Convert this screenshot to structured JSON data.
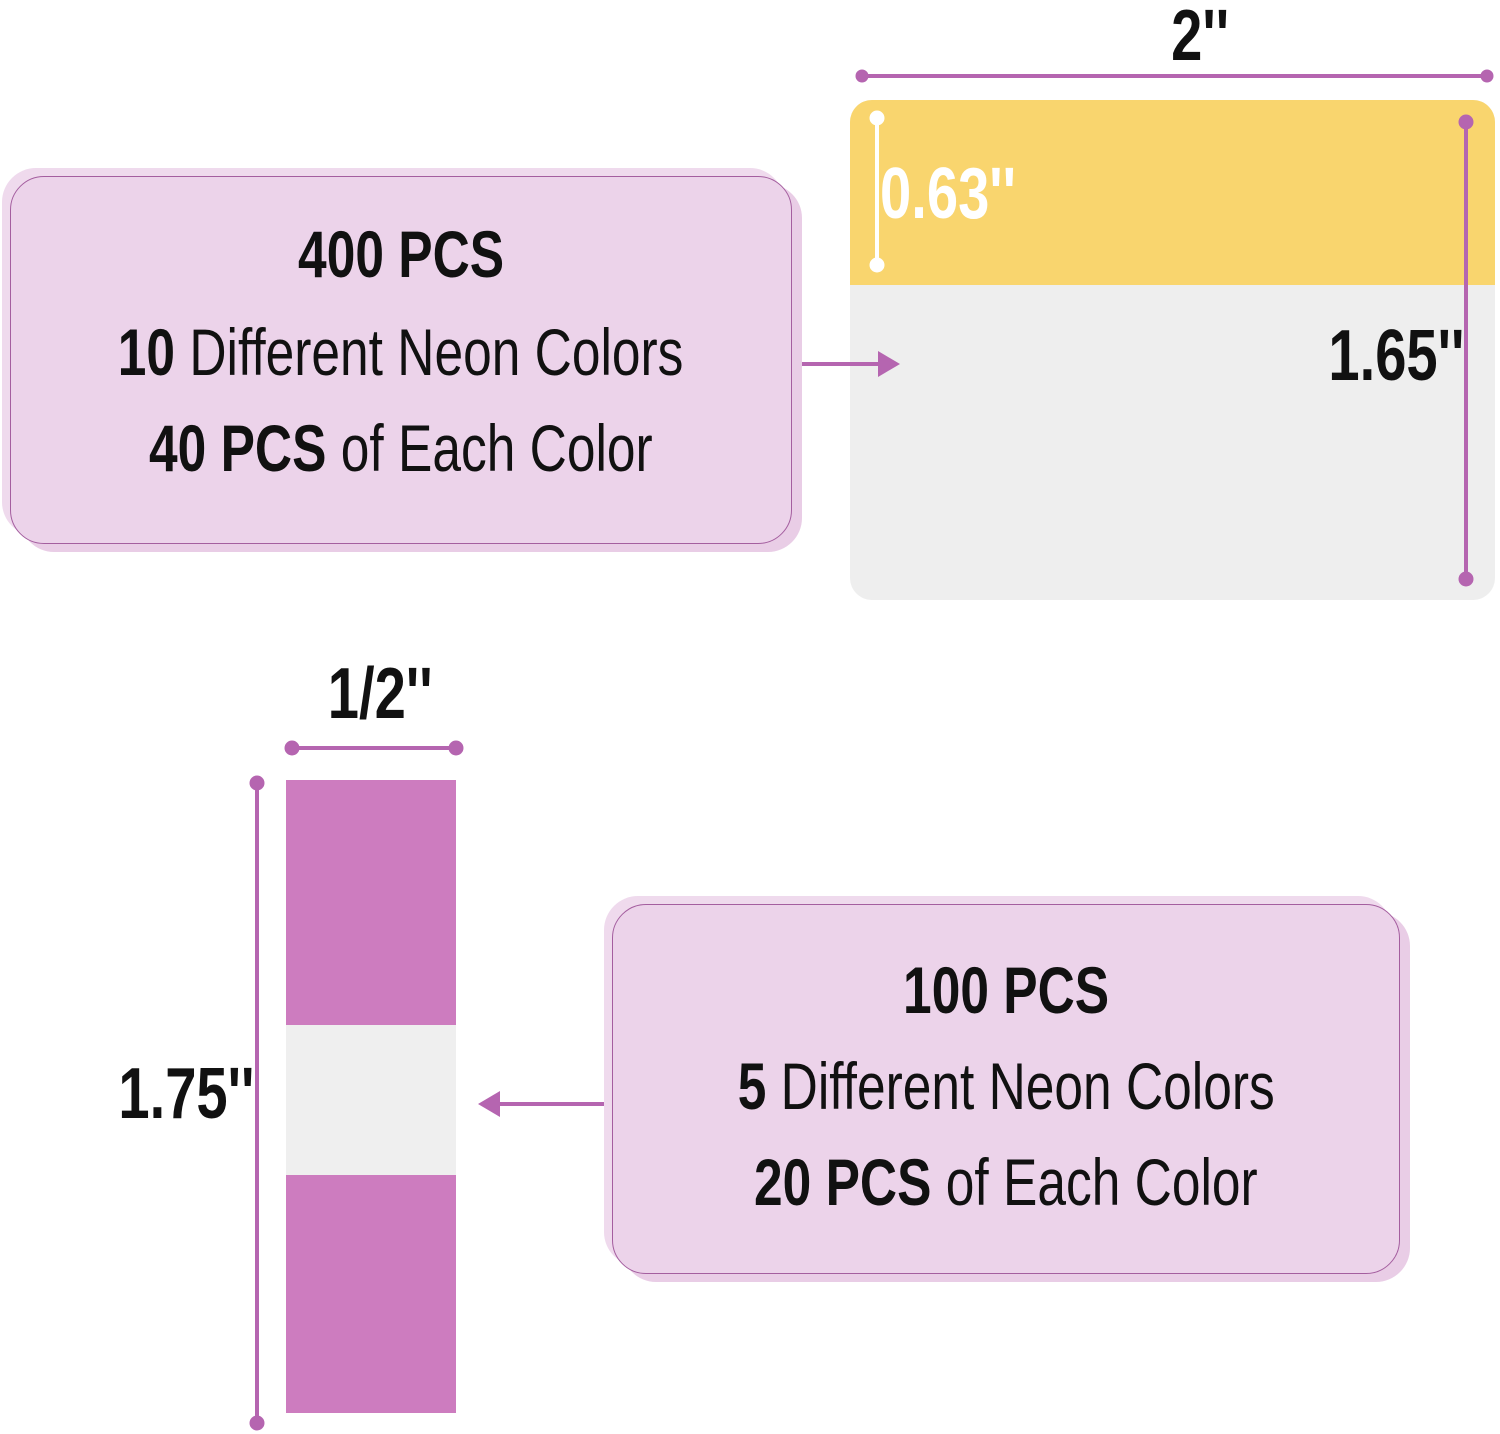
{
  "colors": {
    "accent": "#b565b0",
    "box_fill": "#ecd3ea",
    "large_tab_color": "#f9d56e",
    "small_tab_color": "#cd7cbf",
    "tab_body": "#eeeeee"
  },
  "large_tab": {
    "width_label": "2''",
    "tab_height_label": "0.63''",
    "height_label": "1.65''",
    "info": {
      "total": "400 PCS",
      "colors_count": "10",
      "colors_text": "Different Neon Colors",
      "per_color_count": "40 PCS",
      "per_color_text": "of Each Color"
    }
  },
  "small_tab": {
    "width_label": "1/2''",
    "height_label": "1.75''",
    "info": {
      "total": "100 PCS",
      "colors_count": "5",
      "colors_text": "Different Neon Colors",
      "per_color_count": "20 PCS",
      "per_color_text": "of Each Color"
    }
  }
}
